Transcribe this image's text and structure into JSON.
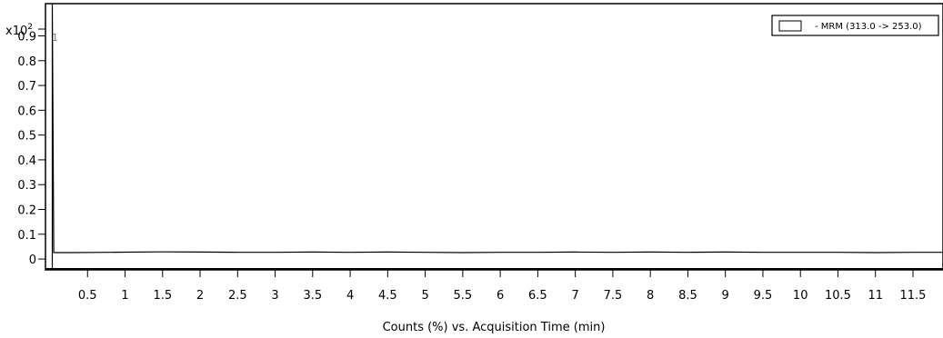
{
  "chart_data": {
    "type": "line",
    "title": "",
    "xlabel": "Counts (%) vs. Acquisition Time (min)",
    "ylabel": "",
    "y_multiplier_label": "x10",
    "y_multiplier_exponent": "2",
    "xlim": [
      0,
      11.9
    ],
    "ylim": [
      -0.04,
      1.03
    ],
    "x_ticks": [
      0.5,
      1,
      1.5,
      2,
      2.5,
      3,
      3.5,
      4,
      4.5,
      5,
      5.5,
      6,
      6.5,
      7,
      7.5,
      8,
      8.5,
      9,
      9.5,
      10,
      10.5,
      11,
      11.5
    ],
    "y_ticks": [
      0,
      0.1,
      0.2,
      0.3,
      0.4,
      0.5,
      0.6,
      0.7,
      0.8,
      0.9
    ],
    "grid": false,
    "legend_position": "top-right",
    "peak_label": "1",
    "series": [
      {
        "name": "- MRM (313.0 -> 253.0)",
        "color": "#000000",
        "x": [
          0.03,
          0.05,
          0.3,
          0.8,
          1.5,
          2.0,
          2.5,
          3.0,
          3.5,
          4.0,
          4.5,
          5.0,
          5.5,
          6.0,
          6.5,
          7.0,
          7.5,
          8.0,
          8.5,
          9.0,
          9.5,
          10.0,
          10.5,
          11.0,
          11.5,
          11.9
        ],
        "y": [
          1.03,
          0.026,
          0.026,
          0.027,
          0.029,
          0.028,
          0.027,
          0.027,
          0.028,
          0.027,
          0.028,
          0.027,
          0.026,
          0.027,
          0.027,
          0.028,
          0.027,
          0.028,
          0.027,
          0.028,
          0.027,
          0.027,
          0.027,
          0.026,
          0.027,
          0.027
        ]
      }
    ]
  }
}
